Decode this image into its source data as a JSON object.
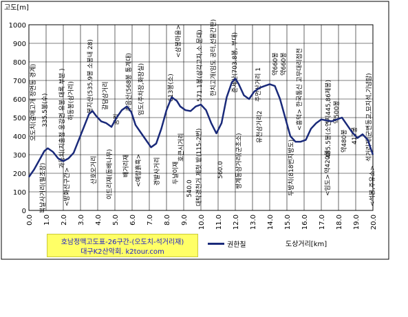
{
  "chart_data": {
    "type": "line",
    "ylabel": "고도[m]",
    "xlabel": "도상거리[km]",
    "ylim": [
      0,
      1000
    ],
    "xlim": [
      0,
      20
    ],
    "yticks": [
      "0",
      "100",
      "200",
      "300",
      "400",
      "500",
      "600",
      "700",
      "800",
      "900",
      "1000"
    ],
    "xticks": [
      "0.0",
      "1.0",
      "2.0",
      "3.0",
      "4.0",
      "5.0",
      "6.0",
      "7.0",
      "8.0",
      "9.0",
      "10.0",
      "11.0",
      "12.0",
      "13.0",
      "14.0",
      "15.0",
      "16.0",
      "17.0",
      "18.0",
      "19.0",
      "20.0"
    ],
    "grid": true,
    "series": [
      {
        "name": "권한칠",
        "color": "#1a2a7a",
        "x": [
          0.0,
          0.3,
          0.6,
          0.9,
          1.1,
          1.4,
          1.7,
          2.0,
          2.3,
          2.6,
          2.9,
          3.2,
          3.5,
          3.7,
          3.9,
          4.2,
          4.5,
          4.8,
          5.1,
          5.4,
          5.7,
          5.95,
          6.2,
          6.5,
          6.8,
          7.1,
          7.4,
          7.7,
          8.0,
          8.3,
          8.6,
          8.8,
          9.1,
          9.4,
          9.7,
          10.0,
          10.3,
          10.6,
          10.9,
          11.2,
          11.5,
          11.8,
          12.0,
          12.2,
          12.5,
          12.8,
          13.1,
          13.4,
          13.7,
          14.0,
          14.3,
          14.6,
          14.9,
          15.2,
          15.5,
          15.8,
          16.1,
          16.4,
          16.7,
          17.0,
          17.3,
          17.6,
          17.9,
          18.2,
          18.5,
          18.8,
          19.1,
          19.4,
          19.7,
          20.0
        ],
        "values": [
          180,
          220,
          270,
          320,
          335,
          315,
          280,
          265,
          280,
          310,
          380,
          450,
          520,
          535,
          510,
          480,
          470,
          450,
          500,
          540,
          560,
          530,
          460,
          420,
          380,
          340,
          360,
          440,
          540,
          610,
          590,
          560,
          540,
          535,
          560,
          570,
          540,
          470,
          415,
          470,
          610,
          690,
          710,
          680,
          620,
          600,
          640,
          660,
          670,
          680,
          670,
          600,
          500,
          400,
          370,
          370,
          380,
          440,
          470,
          490,
          485,
          480,
          490,
          500,
          460,
          420,
          390,
          410,
          380,
          300
        ]
      }
    ],
    "annotations": [
      "오도치(갈매고개 정면동 경계)",
      "335.5봉(수)",
      "과동치(지출점 웅강면 유봉 대록 부분 )",
      "하동봉(삼거리)",
      "봉지산(535.9봉 소봉내 28)",
      "갈담삼거리",
      "공리",
      "주음산(568봉 통계대)",
      "임도(주차장,화장실)",
      "613봉(소)",
      "<삼봉마을>",
      "571.1봉(삼각고자,소 문대)",
      "한치고개(임도 공터,선물간판)",
      "주먼산거리 1 ",
      "준세산(703.8봉, 부대)",
      "약660봉",
      "약660봉",
      "<흥덕> 한국통신 고무대리점전",
      "485.5봉(소연지445,86제봉)",
      "약500봉",
      "석거리재(군변동교,묘지석,기념탑)",
      "417봉",
      "약480봉",
      "약420봉",
      "<임도>",
      "두방치(818번지방도)",
      "유천삼거리2",
      "쌍계동삼거리(군초소)",
      "560.0",
      "대탁경천거 제첫 밭(115-2번)",
      "540.0",
      "호큰시거리",
      "두날이재",
      "경발사거리",
      "<예랑흙흑>",
      "배거리재",
      "이드리재(동배나무)",
      "산호오거리",
      "<방화선구간>",
      "복날사거리(필조장)",
      "<석봉,주유소>"
    ],
    "source": {
      "line1": "호남정맥고도표-26구간-(오도치-석거리재)",
      "line2": "대구K2산악회. k2tour.com"
    }
  }
}
